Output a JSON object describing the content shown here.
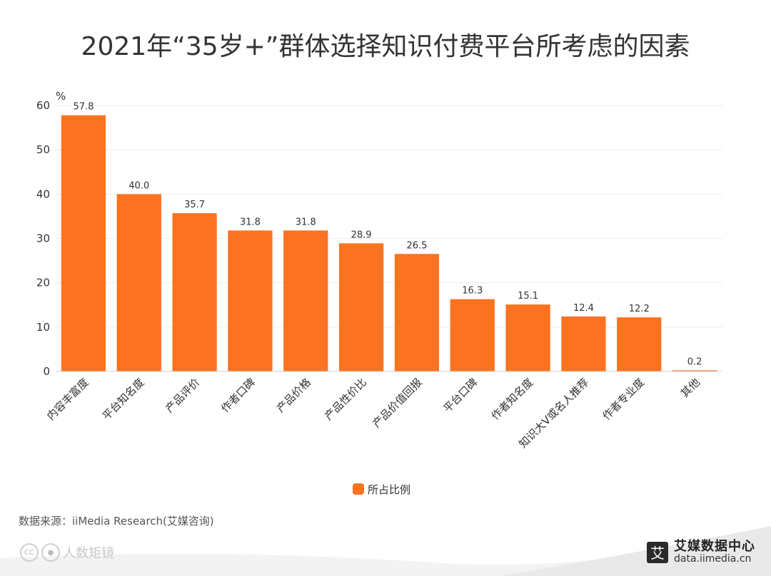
{
  "title": "2021年“35岁+”群体选择知识付费平台所考虑的因素",
  "source": "数据来源：iiMedia Research(艾媒咨询)",
  "watermark": {
    "text": "人数矩镜",
    "icon_cc": "CC",
    "icon_person": "person-icon"
  },
  "brand": {
    "logo_char": "艾",
    "name": "艾媒数据中心",
    "url": "data.iimedia.cn"
  },
  "colors": {
    "bar": "#fb7320",
    "grid": "#ececec",
    "axis": "#cccccc",
    "text": "#333333"
  },
  "chart_data": {
    "type": "bar",
    "title": "2021年“35岁+”群体选择知识付费平台所考虑的因素",
    "ylabel": "%",
    "xlabel": "",
    "ylim": [
      0,
      60
    ],
    "yticks": [
      0,
      10,
      20,
      30,
      40,
      50,
      60
    ],
    "grid": true,
    "legend_position": "bottom-center",
    "categories": [
      "内容丰富度",
      "平台知名度",
      "产品评价",
      "作者口碑",
      "产品价格",
      "产品性价比",
      "产品价值回报",
      "平台口碑",
      "作者知名度",
      "知识大V或名人推荐",
      "作者专业度",
      "其他"
    ],
    "series": [
      {
        "name": "所占比例",
        "values": [
          57.8,
          40.0,
          35.7,
          31.8,
          31.8,
          28.9,
          26.5,
          16.3,
          15.1,
          12.4,
          12.2,
          0.2
        ],
        "labels": [
          "57.8",
          "40.0",
          "35.7",
          "31.8",
          "31.8",
          "28.9",
          "26.5",
          "16.3",
          "15.1",
          "12.4",
          "12.2",
          "0.2"
        ]
      }
    ]
  }
}
